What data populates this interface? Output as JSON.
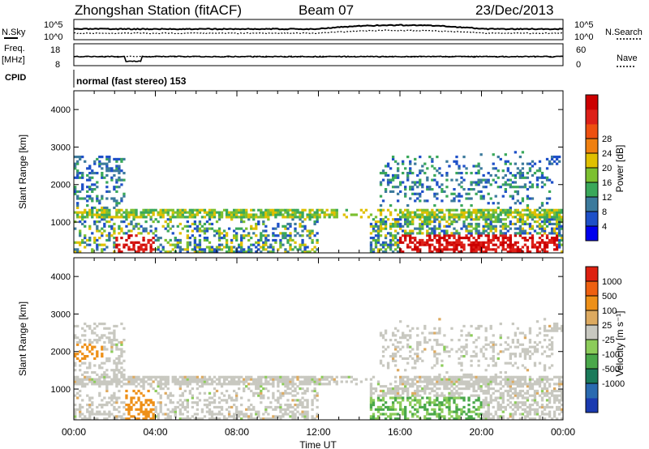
{
  "header": {
    "station": "Zhongshan Station (fitACF)",
    "beam": "Beam 07",
    "date": "23/Dec/2013"
  },
  "labels": {
    "nsky": "N.Sky",
    "nsearch": "N.Search",
    "freq": "Freq.",
    "freq_unit": "[MHz]",
    "nave": "Nave",
    "cpid_label": "CPID",
    "cpid_value": "normal (fast stereo) 153"
  },
  "noise_axis": {
    "left_ticks": [
      "10^5",
      "10^0"
    ],
    "right_ticks": [
      "10^5",
      "10^0"
    ]
  },
  "freq_axis": {
    "left_ticks": [
      "18",
      "8"
    ],
    "right_ticks": [
      "60",
      "0"
    ]
  },
  "chart_data": [
    {
      "type": "heatmap",
      "name": "power-panel",
      "xlabel": "",
      "ylabel": "Slant Range [km]",
      "ylim": [
        180,
        4500
      ],
      "yticks": [
        1000,
        2000,
        3000,
        4000
      ],
      "colorbar": {
        "label": "Power [dB]",
        "ticks": [
          "4",
          "8",
          "12",
          "16",
          "20",
          "24",
          "28"
        ],
        "colors": [
          "#0000ee",
          "#1e50c8",
          "#3c7a9c",
          "#3aa85a",
          "#7cc030",
          "#e0c000",
          "#f08010",
          "#ee5010",
          "#dd2018",
          "#cc0000"
        ]
      }
    },
    {
      "type": "heatmap",
      "name": "velocity-panel",
      "xlabel": "Time UT",
      "ylabel": "Slant Range [km]",
      "ylim": [
        180,
        4500
      ],
      "yticks": [
        1000,
        2000,
        3000,
        4000
      ],
      "colorbar": {
        "label": "Velocity [m s⁻¹]",
        "ticks": [
          "1000",
          "500",
          "100",
          "25",
          "-25",
          "-100",
          "-500",
          "-1000"
        ],
        "colors": [
          "#1a3ab0",
          "#2a6ab0",
          "#1a7a5a",
          "#4aa84a",
          "#8ccc5a",
          "#c8c8c0",
          "#ddaa60",
          "#ee9018",
          "#ee6010",
          "#dd2010"
        ]
      }
    }
  ],
  "time_axis": {
    "range_hours": [
      0,
      24
    ],
    "tick_labels": [
      "00:00",
      "04:00",
      "08:00",
      "12:00",
      "16:00",
      "20:00",
      "00:00"
    ]
  }
}
